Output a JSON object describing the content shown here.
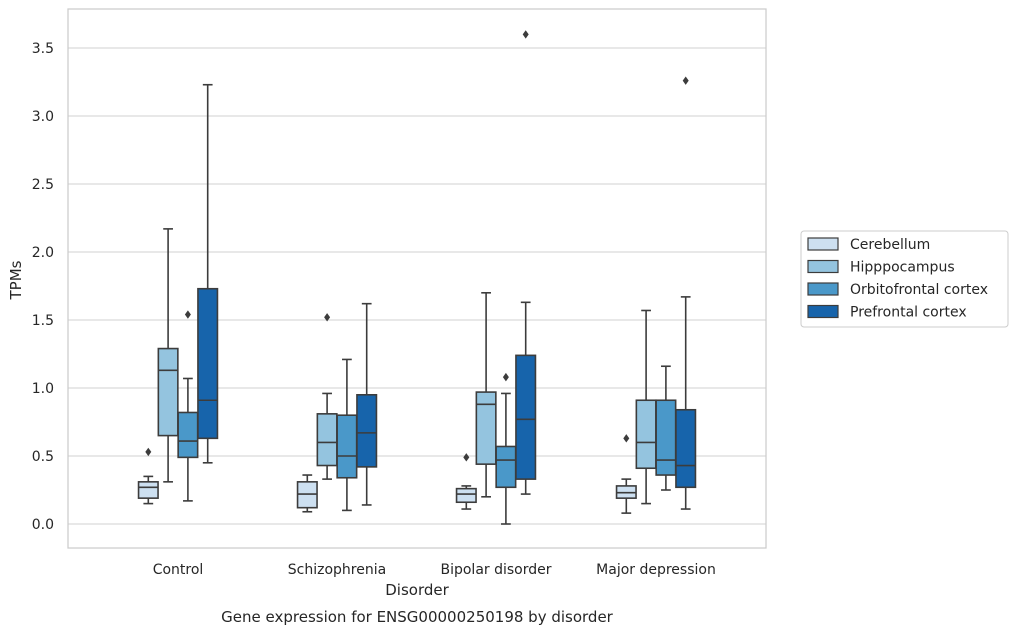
{
  "chart_data": {
    "type": "box",
    "caption": "Gene expression for ENSG00000250198 by disorder",
    "xlabel": "Disorder",
    "ylabel": "TPMs",
    "ylim": [
      -0.17,
      3.77
    ],
    "yticks": [
      0.0,
      0.5,
      1.0,
      1.5,
      2.0,
      2.5,
      3.0,
      3.5
    ],
    "ytick_labels": [
      "0.0",
      "0.5",
      "1.0",
      "1.5",
      "2.0",
      "2.5",
      "3.0",
      "3.5"
    ],
    "grid": "horizontal",
    "legend_position": "right",
    "categories": [
      "Control",
      "Schizophrenia",
      "Bipolar disorder",
      "Major depression"
    ],
    "series": [
      {
        "name": "Cerebellum",
        "color": "#cde0f1",
        "boxes": [
          {
            "whislo": 0.15,
            "q1": 0.19,
            "med": 0.27,
            "q3": 0.31,
            "whishi": 0.35,
            "fliers": [
              0.53
            ]
          },
          {
            "whislo": 0.09,
            "q1": 0.12,
            "med": 0.22,
            "q3": 0.31,
            "whishi": 0.36,
            "fliers": []
          },
          {
            "whislo": 0.11,
            "q1": 0.16,
            "med": 0.22,
            "q3": 0.26,
            "whishi": 0.28,
            "fliers": [
              0.49
            ]
          },
          {
            "whislo": 0.08,
            "q1": 0.19,
            "med": 0.23,
            "q3": 0.28,
            "whishi": 0.33,
            "fliers": [
              0.63
            ]
          }
        ]
      },
      {
        "name": "Hipppocampus",
        "color": "#94c4df",
        "boxes": [
          {
            "whislo": 0.31,
            "q1": 0.65,
            "med": 1.13,
            "q3": 1.29,
            "whishi": 2.17,
            "fliers": []
          },
          {
            "whislo": 0.33,
            "q1": 0.43,
            "med": 0.6,
            "q3": 0.81,
            "whishi": 0.96,
            "fliers": [
              1.52
            ]
          },
          {
            "whislo": 0.2,
            "q1": 0.44,
            "med": 0.88,
            "q3": 0.97,
            "whishi": 1.7,
            "fliers": []
          },
          {
            "whislo": 0.15,
            "q1": 0.41,
            "med": 0.6,
            "q3": 0.91,
            "whishi": 1.57,
            "fliers": []
          }
        ]
      },
      {
        "name": "Orbitofrontal cortex",
        "color": "#4a98c9",
        "boxes": [
          {
            "whislo": 0.17,
            "q1": 0.49,
            "med": 0.61,
            "q3": 0.82,
            "whishi": 1.07,
            "fliers": [
              1.54
            ]
          },
          {
            "whislo": 0.1,
            "q1": 0.34,
            "med": 0.5,
            "q3": 0.8,
            "whishi": 1.21,
            "fliers": []
          },
          {
            "whislo": 0.0,
            "q1": 0.27,
            "med": 0.47,
            "q3": 0.57,
            "whishi": 0.96,
            "fliers": [
              1.08
            ]
          },
          {
            "whislo": 0.25,
            "q1": 0.36,
            "med": 0.47,
            "q3": 0.91,
            "whishi": 1.16,
            "fliers": []
          }
        ]
      },
      {
        "name": "Prefrontal cortex",
        "color": "#1764ab",
        "boxes": [
          {
            "whislo": 0.45,
            "q1": 0.63,
            "med": 0.91,
            "q3": 1.73,
            "whishi": 3.23,
            "fliers": []
          },
          {
            "whislo": 0.14,
            "q1": 0.42,
            "med": 0.67,
            "q3": 0.95,
            "whishi": 1.62,
            "fliers": []
          },
          {
            "whislo": 0.22,
            "q1": 0.33,
            "med": 0.77,
            "q3": 1.24,
            "whishi": 1.63,
            "fliers": [
              3.6
            ]
          },
          {
            "whislo": 0.11,
            "q1": 0.27,
            "med": 0.43,
            "q3": 0.84,
            "whishi": 1.67,
            "fliers": [
              3.26
            ]
          }
        ]
      }
    ]
  }
}
